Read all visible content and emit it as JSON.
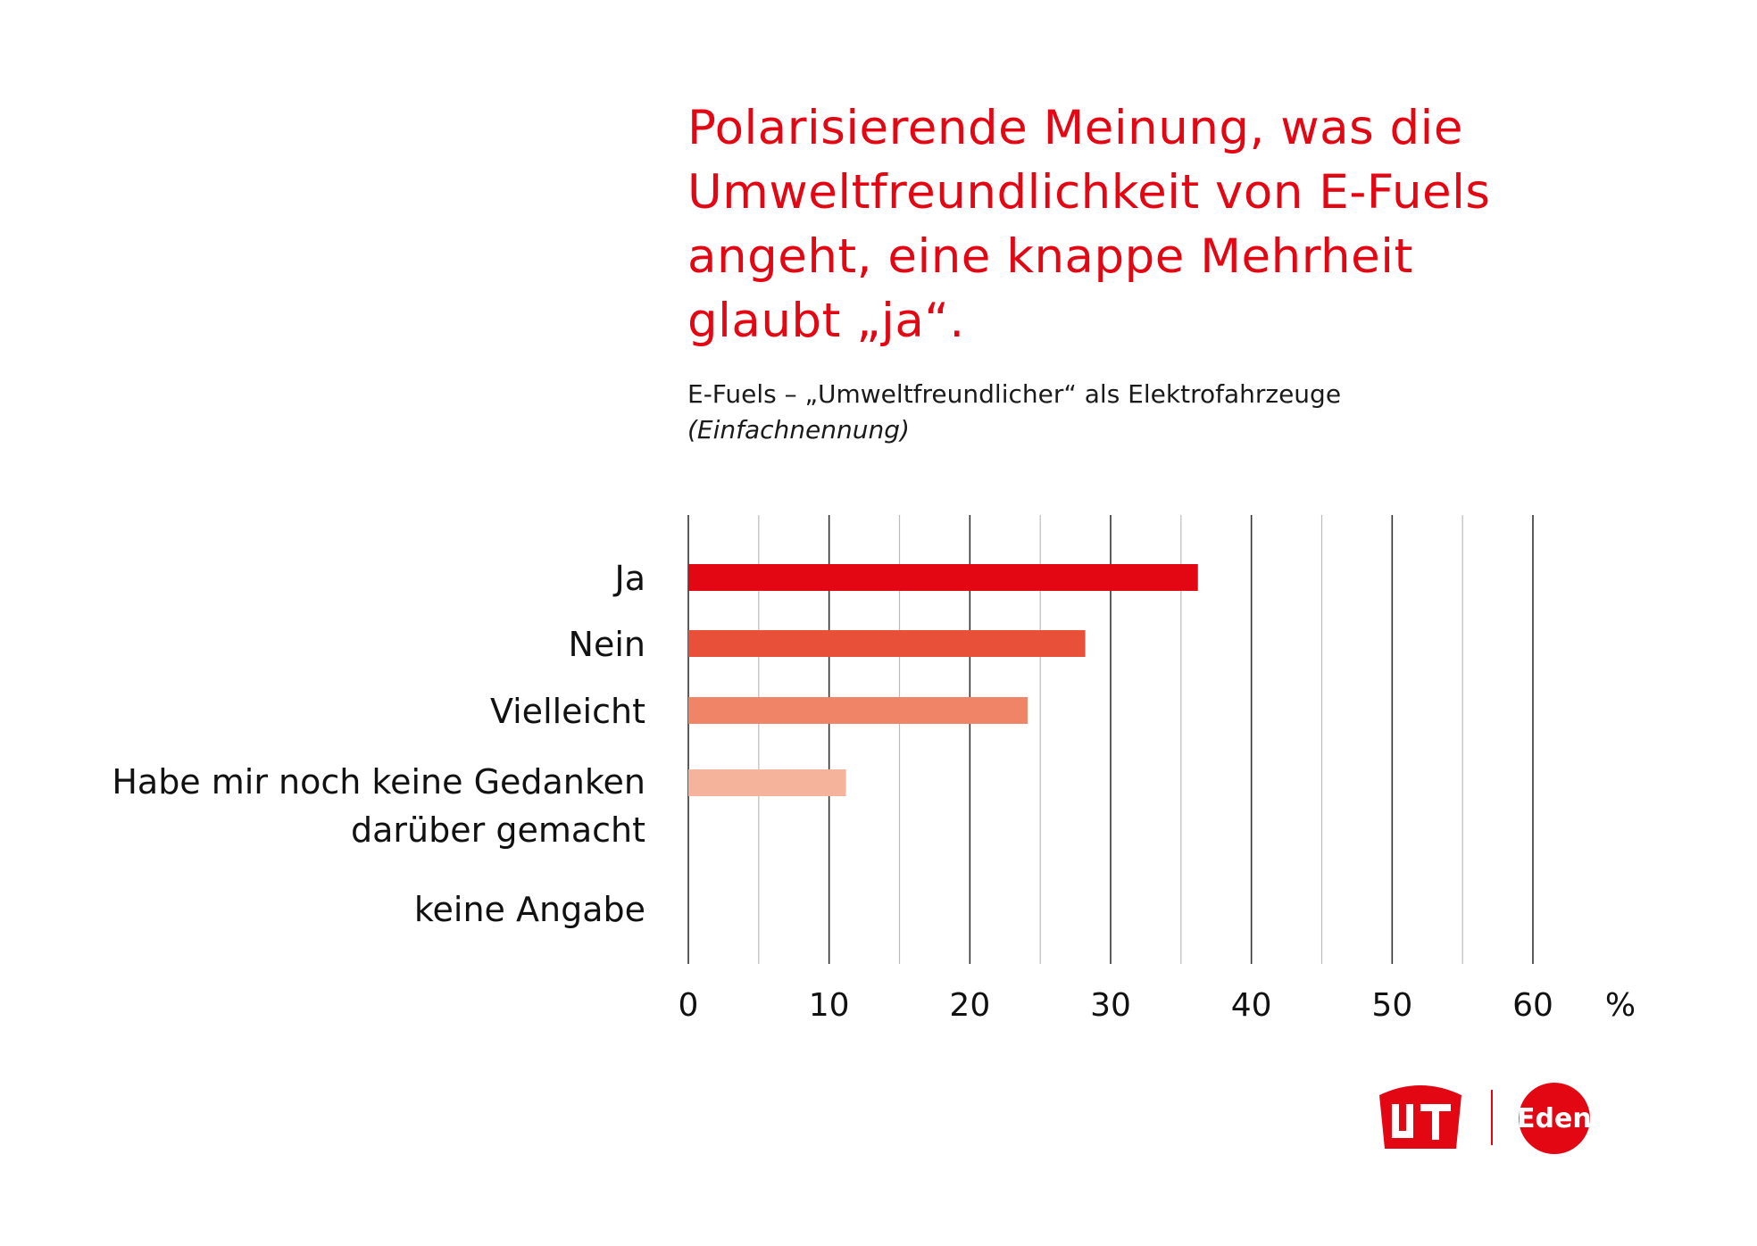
{
  "title_lines": [
    "Polarisierende Meinung, was die",
    "Umweltfreundlichkeit von E-Fuels",
    "angeht, eine knappe Mehrheit",
    "glaubt „ja“."
  ],
  "subtitle": "E-Fuels – „Umweltfreundlicher“ als Elektrofahrzeuge",
  "subtitle_note": "(Einfachnennung)",
  "logos": {
    "left_alt": "UTA",
    "right_text": "Edenred"
  },
  "colors": {
    "title": "#e30613",
    "bars": [
      "#e30613",
      "#e8503a",
      "#ef8466",
      "#f6b39b",
      "#fbd9cc"
    ],
    "grid_major": "#333333",
    "grid_minor": "#bbbbbb"
  },
  "chart_data": {
    "type": "bar",
    "orientation": "horizontal",
    "categories": [
      [
        "Ja"
      ],
      [
        "Nein"
      ],
      [
        "Vielleicht"
      ],
      [
        "Habe mir noch keine Gedanken",
        "darüber gemacht"
      ],
      [
        "keine Angabe"
      ]
    ],
    "values": [
      36.2,
      28.2,
      24.1,
      11.2,
      0
    ],
    "xlim": [
      0,
      60
    ],
    "xticks": [
      0,
      10,
      20,
      30,
      40,
      50,
      60
    ],
    "xtick_labels": [
      "0",
      "10",
      "20",
      "30",
      "40",
      "50",
      "60"
    ],
    "unit": "%",
    "grid": true
  }
}
